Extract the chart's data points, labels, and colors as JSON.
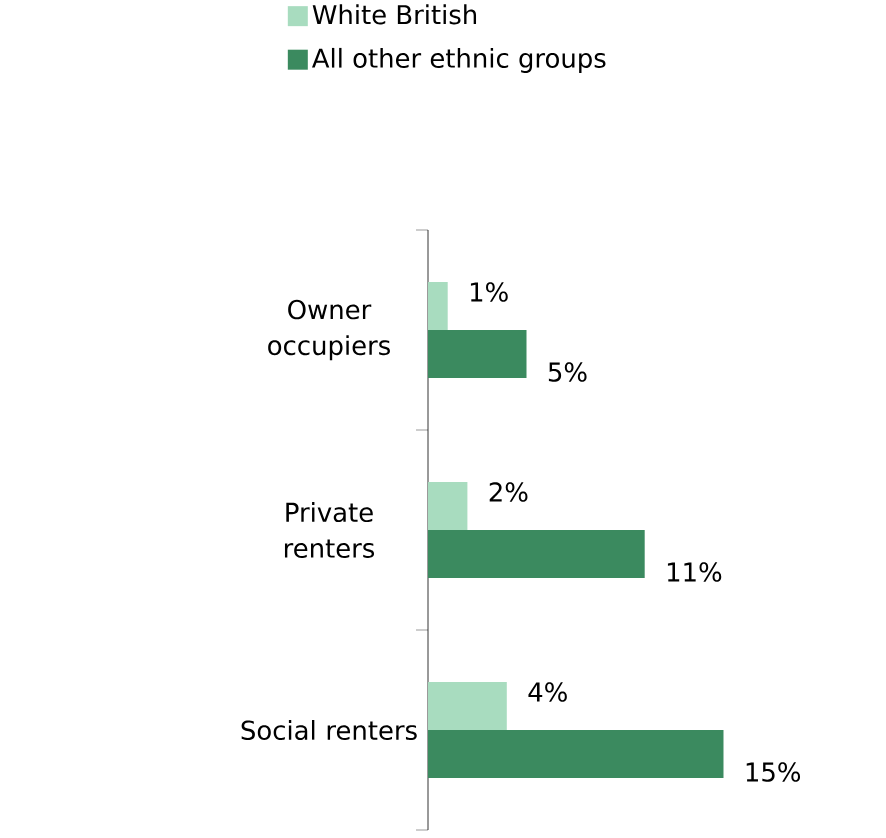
{
  "chart_data": {
    "type": "bar",
    "orientation": "horizontal",
    "categories": [
      "Owner occupiers",
      "Private renters",
      "Social renters"
    ],
    "series": [
      {
        "name": "White British",
        "color": "#a8dcbf",
        "values": [
          1,
          2,
          4
        ],
        "value_labels": [
          "1%",
          "2%",
          "4%"
        ]
      },
      {
        "name": "All other ethnic groups",
        "color": "#3b8a5f",
        "values": [
          5,
          11,
          15
        ],
        "value_labels": [
          "5%",
          "11%",
          "15%"
        ]
      }
    ],
    "legend": "top"
  }
}
